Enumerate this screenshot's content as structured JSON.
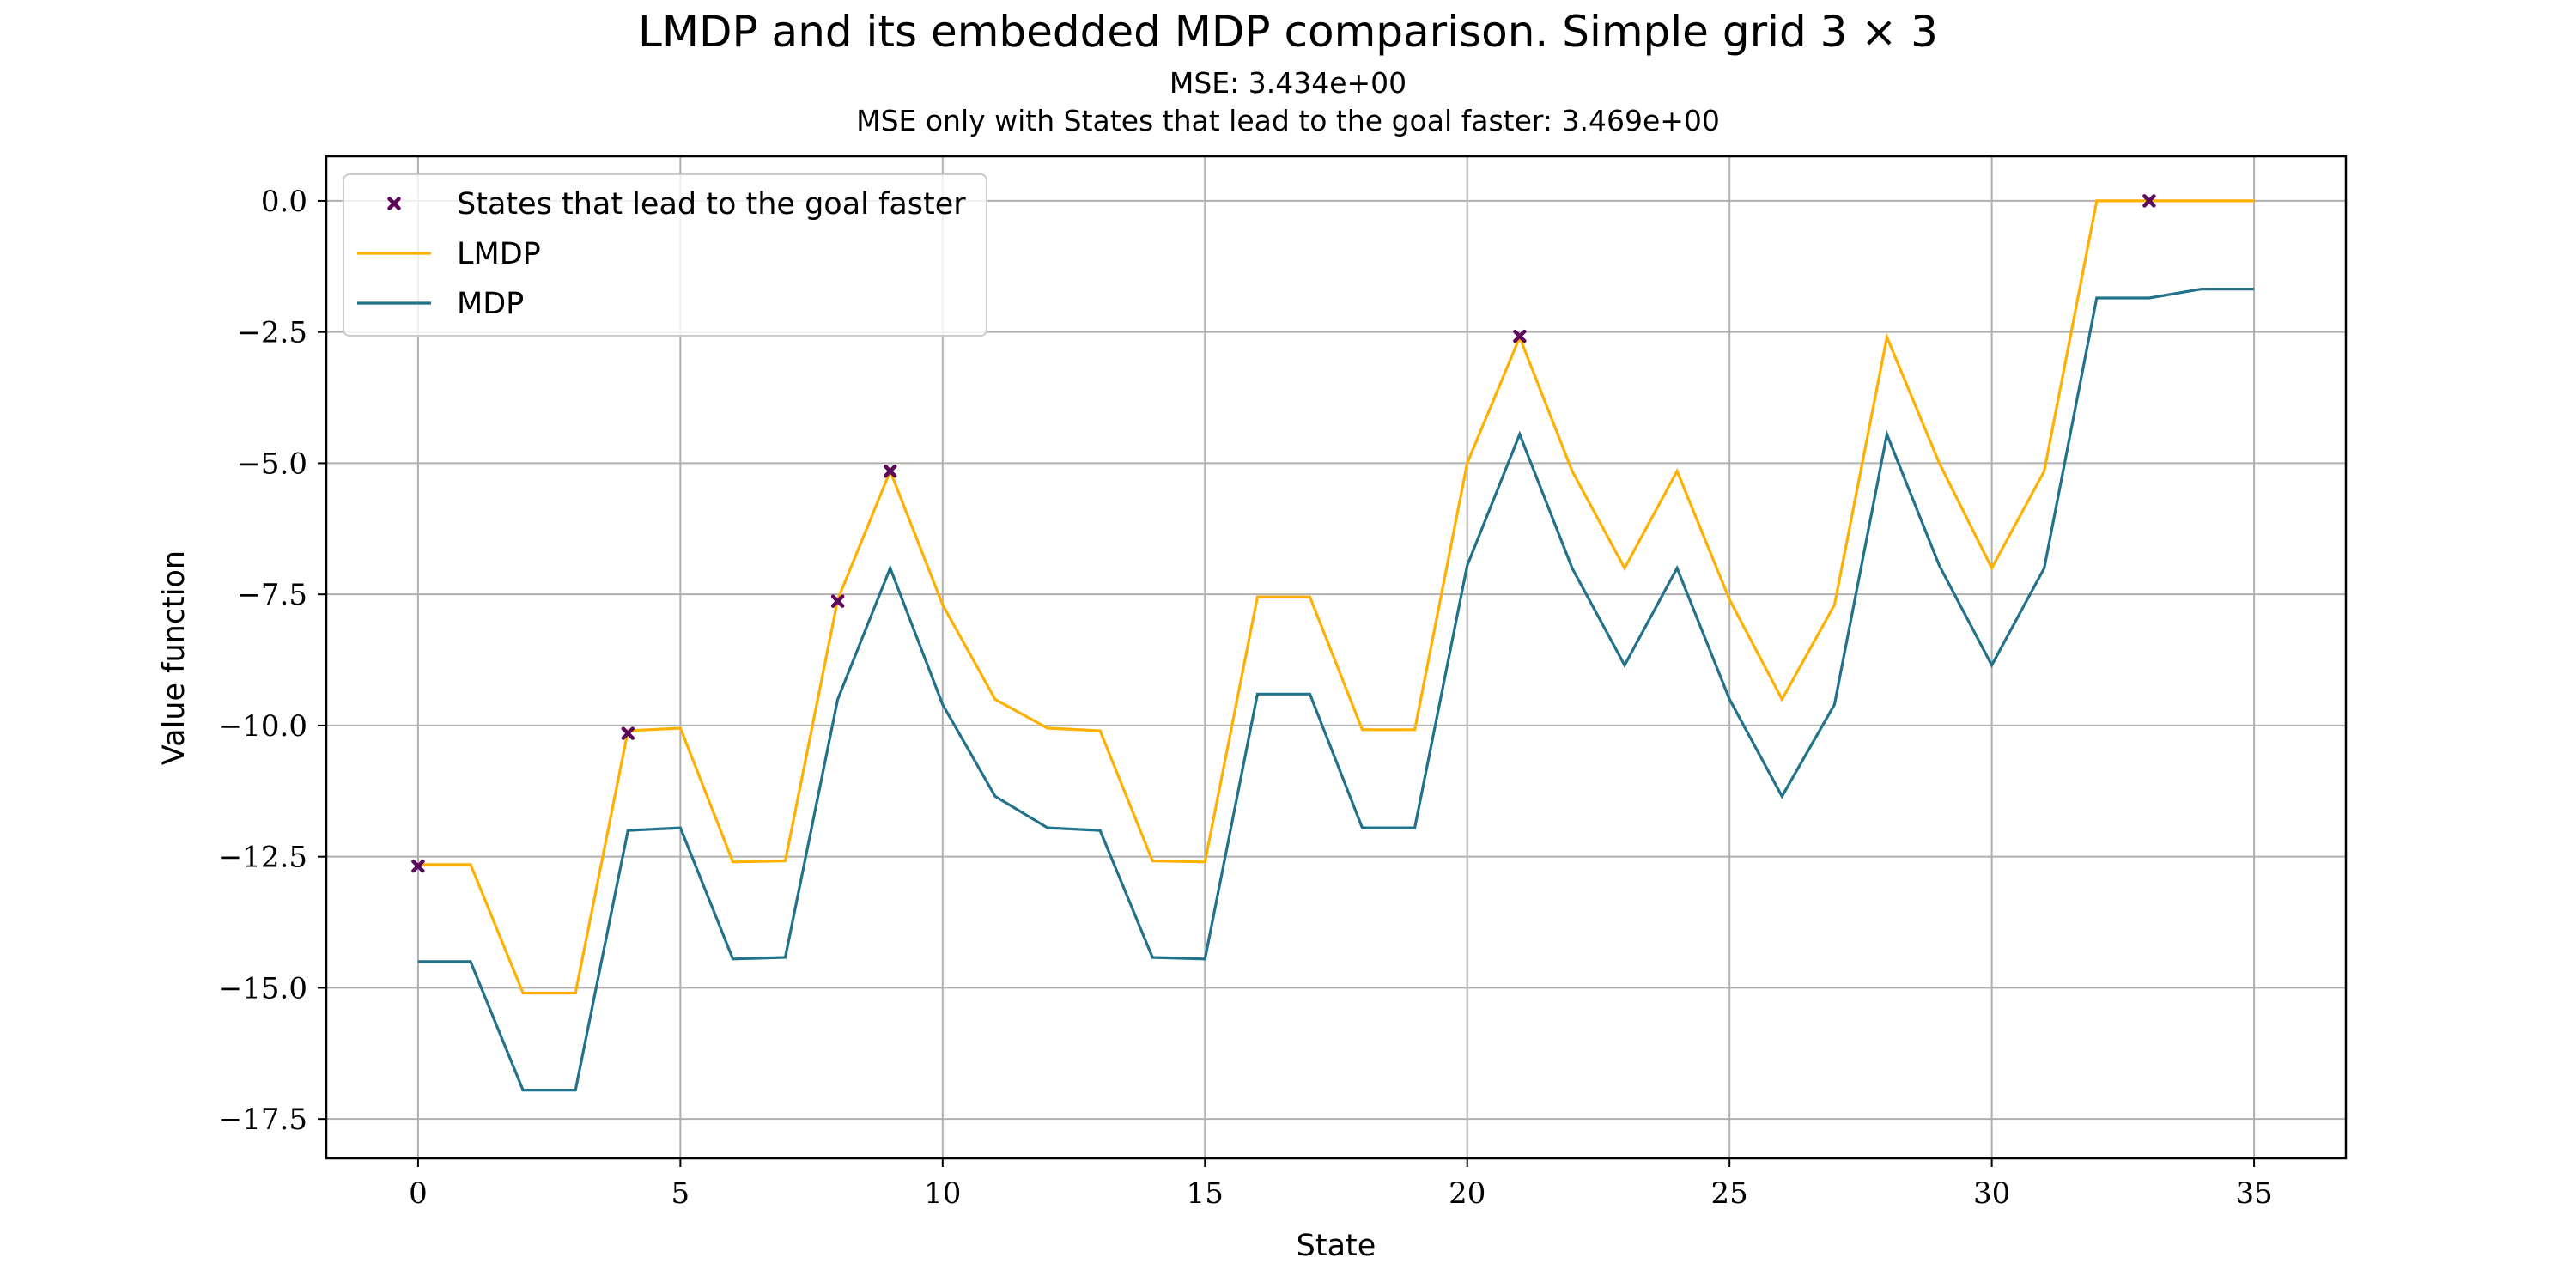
{
  "chart_data": {
    "type": "line",
    "title": "LMDP and its embedded MDP comparison. Simple grid 3 × 3",
    "subtitle_lines": [
      "MSE: 3.434e+00",
      "MSE only with States that lead to the goal faster: 3.469e+00"
    ],
    "xlabel": "State",
    "ylabel": "Value function",
    "xlim": [
      -1.75,
      36.75
    ],
    "ylim": [
      -18.25,
      0.85
    ],
    "x_ticks": [
      0,
      5,
      10,
      15,
      20,
      25,
      30,
      35
    ],
    "x_tick_labels": [
      "0",
      "5",
      "10",
      "15",
      "20",
      "25",
      "30",
      "35"
    ],
    "y_ticks": [
      0.0,
      -2.5,
      -5.0,
      -7.5,
      -10.0,
      -12.5,
      -15.0,
      -17.5
    ],
    "y_tick_labels": [
      "0.0",
      "−2.5",
      "−5.0",
      "−7.5",
      "−10.0",
      "−12.5",
      "−15.0",
      "−17.5"
    ],
    "grid": true,
    "legend_position": "top-left",
    "x": [
      0,
      1,
      2,
      3,
      4,
      5,
      6,
      7,
      8,
      9,
      10,
      11,
      12,
      13,
      14,
      15,
      16,
      17,
      18,
      19,
      20,
      21,
      22,
      23,
      24,
      25,
      26,
      27,
      28,
      29,
      30,
      31,
      32,
      33,
      34,
      35
    ],
    "series": [
      {
        "name": "LMDP",
        "color": "#FFB000",
        "values": [
          -12.65,
          -12.65,
          -15.1,
          -15.1,
          -10.1,
          -10.05,
          -12.6,
          -12.58,
          -7.6,
          -5.15,
          -7.7,
          -9.5,
          -10.05,
          -10.1,
          -12.58,
          -12.6,
          -7.55,
          -7.55,
          -10.08,
          -10.08,
          -5.0,
          -2.6,
          -5.15,
          -7.0,
          -5.15,
          -7.6,
          -9.5,
          -7.7,
          -2.6,
          -5.0,
          -7.0,
          -5.15,
          0.0,
          0.0,
          0.0,
          0.0
        ]
      },
      {
        "name": "MDP",
        "color": "#21728A",
        "values": [
          -14.5,
          -14.5,
          -16.95,
          -16.95,
          -12.0,
          -11.95,
          -14.45,
          -14.42,
          -9.5,
          -7.0,
          -9.6,
          -11.35,
          -11.95,
          -12.0,
          -14.42,
          -14.45,
          -9.4,
          -9.4,
          -11.95,
          -11.95,
          -6.95,
          -4.45,
          -7.0,
          -8.85,
          -7.0,
          -9.5,
          -11.35,
          -9.6,
          -4.45,
          -6.95,
          -8.85,
          -7.0,
          -1.85,
          -1.85,
          -1.68,
          -1.68
        ]
      }
    ],
    "markers": {
      "name": "States that lead to the goal faster",
      "color": "#5C0A5C",
      "symbol": "x",
      "points": [
        {
          "x": 0,
          "y": -12.68
        },
        {
          "x": 4,
          "y": -10.15
        },
        {
          "x": 8,
          "y": -7.63
        },
        {
          "x": 9,
          "y": -5.15
        },
        {
          "x": 21,
          "y": -2.58
        },
        {
          "x": 33,
          "y": 0.0
        }
      ]
    },
    "legend_entries": [
      {
        "label": "States that lead to the goal faster",
        "kind": "marker",
        "color": "#5C0A5C"
      },
      {
        "label": "LMDP",
        "kind": "line",
        "color": "#FFB000"
      },
      {
        "label": "MDP",
        "kind": "line",
        "color": "#21728A"
      }
    ]
  }
}
